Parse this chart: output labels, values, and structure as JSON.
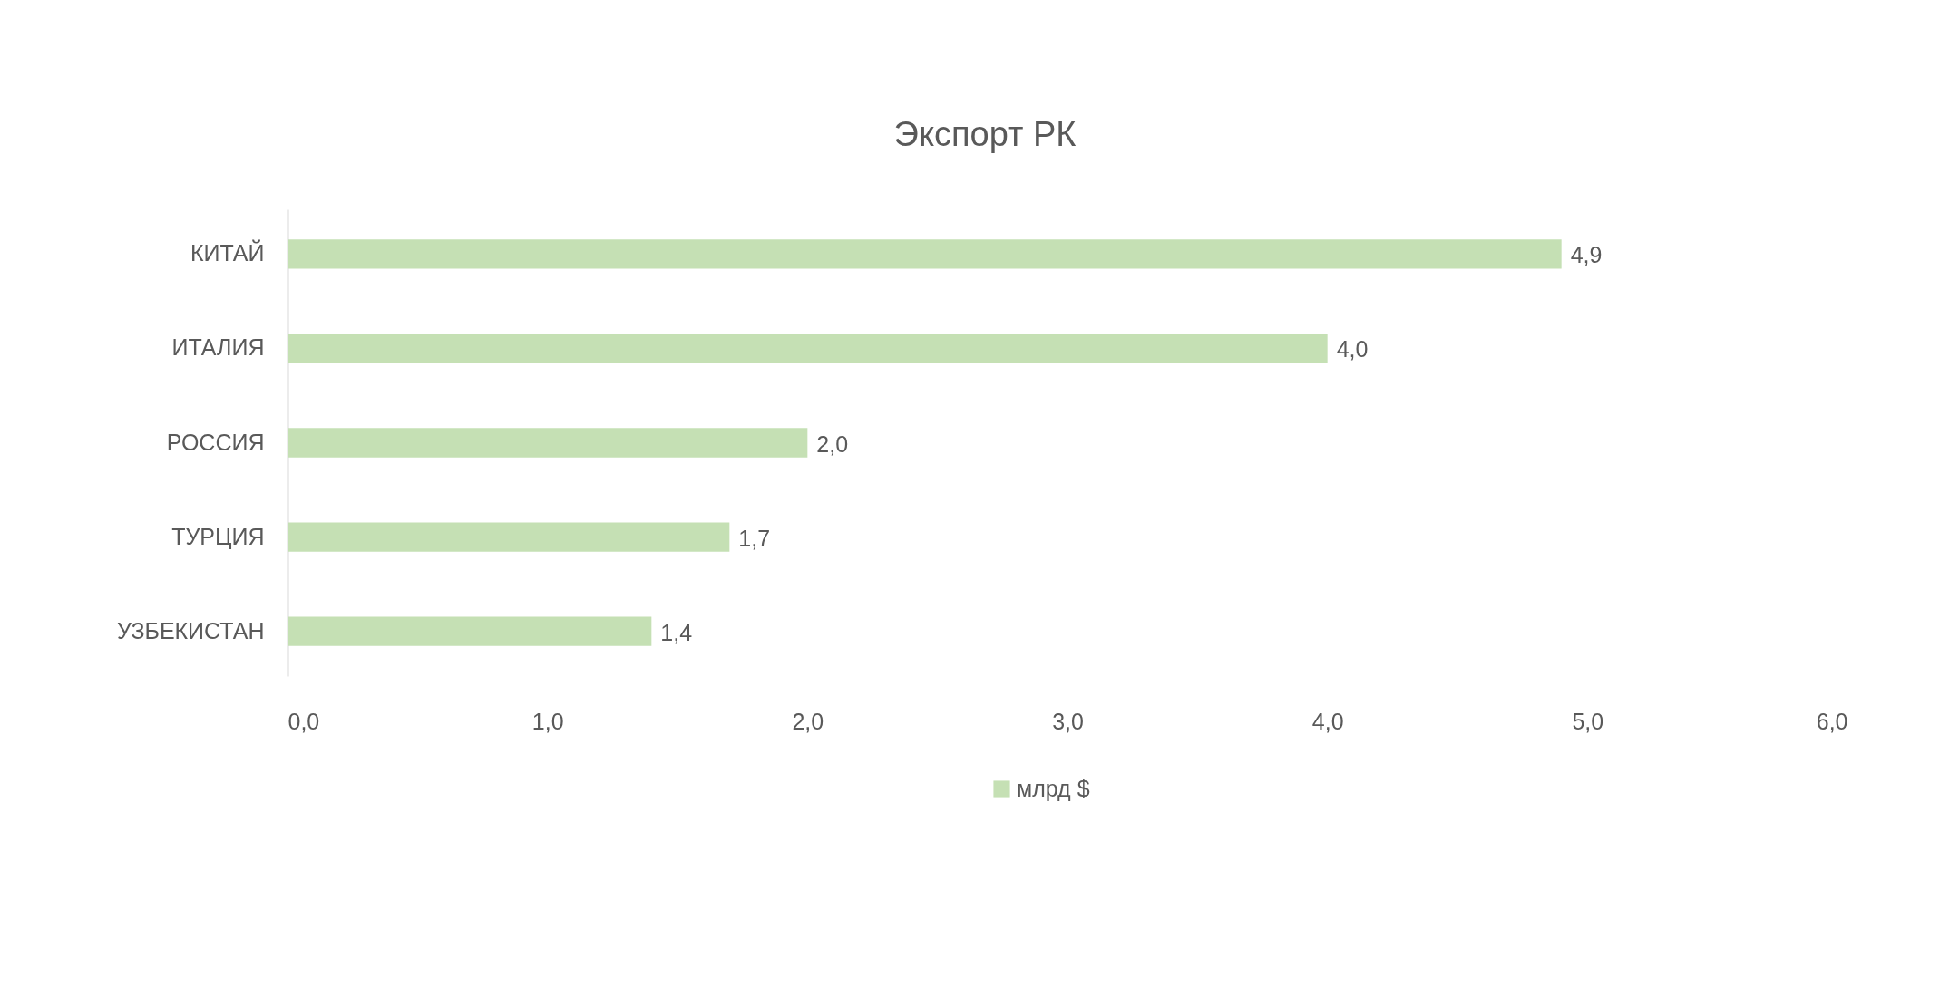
{
  "chart_data": {
    "type": "bar",
    "orientation": "horizontal",
    "title": "Экспорт РК",
    "categories": [
      "КИТАЙ",
      "ИТАЛИЯ",
      "РОССИЯ",
      "ТУРЦИЯ",
      "УЗБЕКИСТАН"
    ],
    "series": [
      {
        "name": "млрд $",
        "color": "#c5e0b4",
        "values": [
          4.9,
          4.0,
          2.0,
          1.7,
          1.4
        ],
        "value_labels": [
          "4,9",
          "4,0",
          "2,0",
          "1,7",
          "1,4"
        ]
      }
    ],
    "xlim": [
      0,
      6
    ],
    "xticks": [
      {
        "value": 0,
        "label": "0,0"
      },
      {
        "value": 1,
        "label": "1,0"
      },
      {
        "value": 2,
        "label": "2,0"
      },
      {
        "value": 3,
        "label": "3,0"
      },
      {
        "value": 4,
        "label": "4,0"
      },
      {
        "value": 5,
        "label": "5,0"
      },
      {
        "value": 6,
        "label": "6,0"
      }
    ],
    "grid": false,
    "legend": "bottom"
  }
}
